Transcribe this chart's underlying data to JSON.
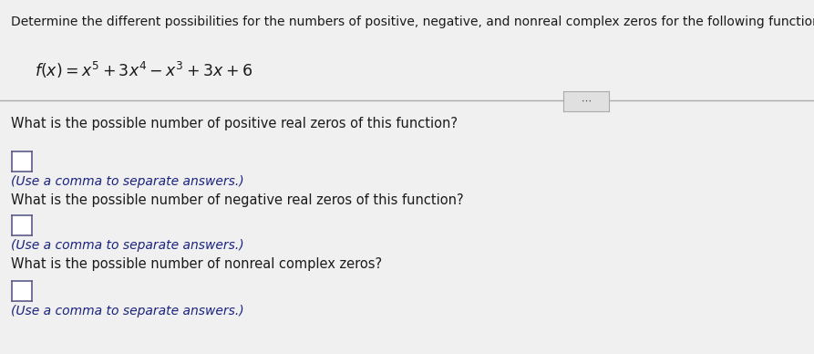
{
  "background_color": "#f0f0f0",
  "title_line": "Determine the different possibilities for the numbers of positive, negative, and nonreal complex zeros for the following function.",
  "q1": "What is the possible number of positive real zeros of this function?",
  "q2": "What is the possible number of negative real zeros of this function?",
  "q3": "What is the possible number of nonreal complex zeros?",
  "hint": "(Use a comma to separate answers.)",
  "font_size_title": 10.0,
  "font_size_func": 12.5,
  "font_size_body": 10.5,
  "font_size_hint": 10.0,
  "text_color": "#1a1a1a",
  "hint_color": "#1a237e",
  "box_edge_color": "#5c5c8a",
  "divider_color": "#aaaaaa",
  "dots_bg": "#e0e0e0",
  "dots_border": "#aaaaaa"
}
